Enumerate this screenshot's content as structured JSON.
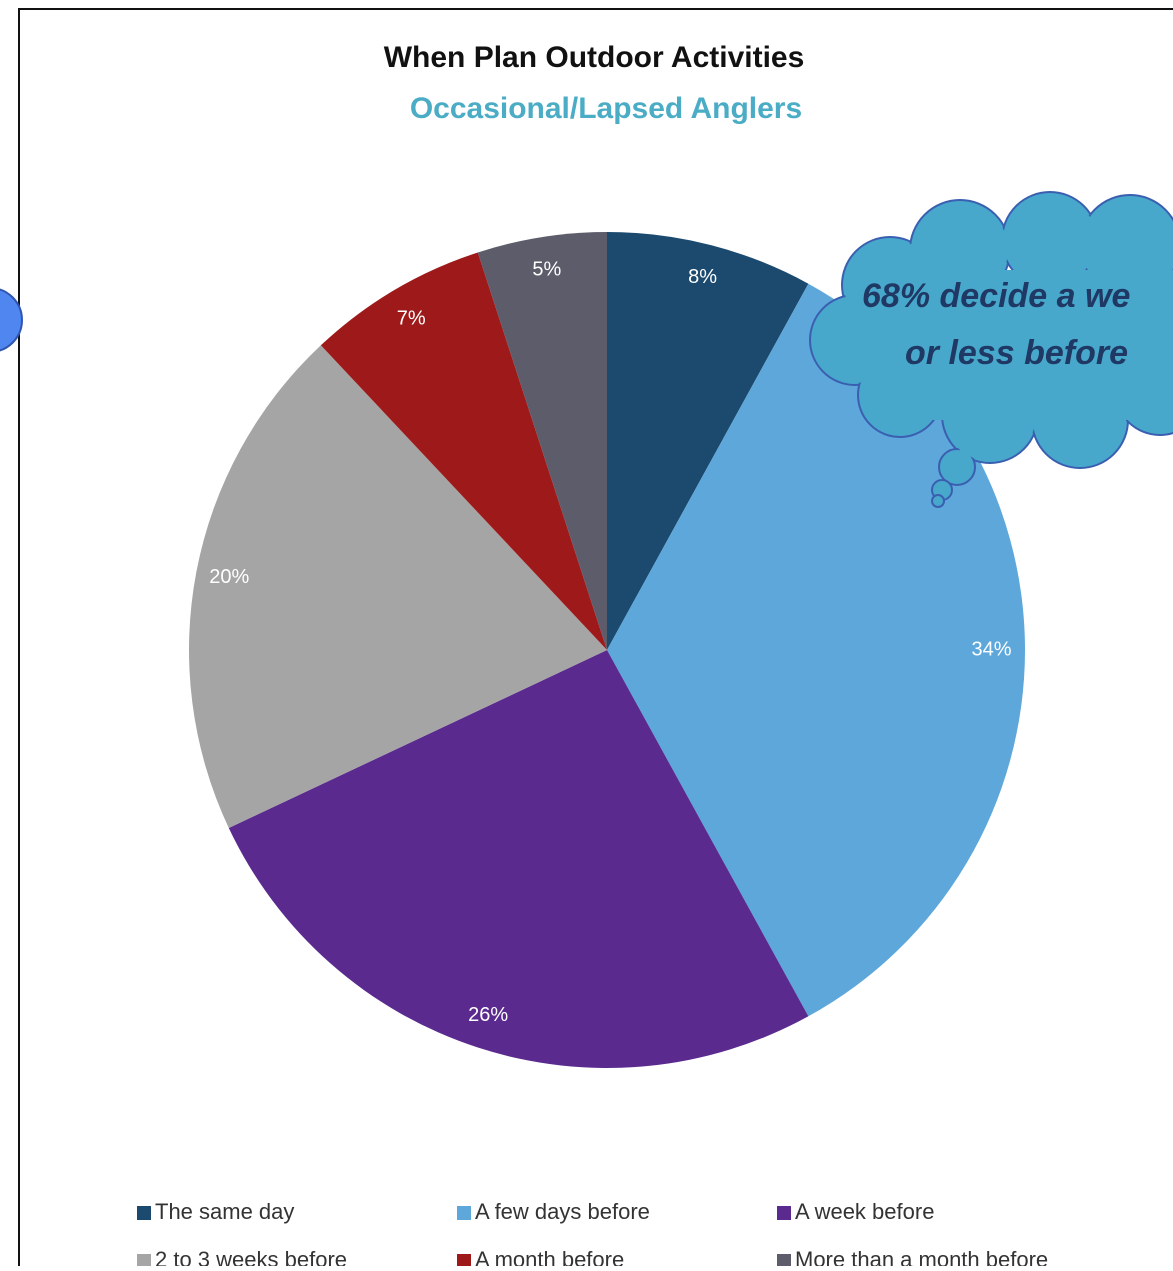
{
  "chart_data": {
    "type": "pie",
    "title": "When Plan Outdoor Activities",
    "subtitle": "Occasional/Lapsed Anglers",
    "categories": [
      "The same day",
      "A few days before",
      "A week before",
      "2 to 3 weeks before",
      "A month before",
      "More than a month before"
    ],
    "values": [
      8,
      34,
      26,
      20,
      7,
      5
    ],
    "value_labels": [
      "8%",
      "34%",
      "26%",
      "20%",
      "7%",
      "5%"
    ],
    "colors": [
      "#1b4a6e",
      "#5ea7db",
      "#5a2a8f",
      "#a5a5a5",
      "#9e1a1a",
      "#5c5c6b"
    ],
    "annotation": [
      "68% decide a we",
      "or less before"
    ]
  }
}
